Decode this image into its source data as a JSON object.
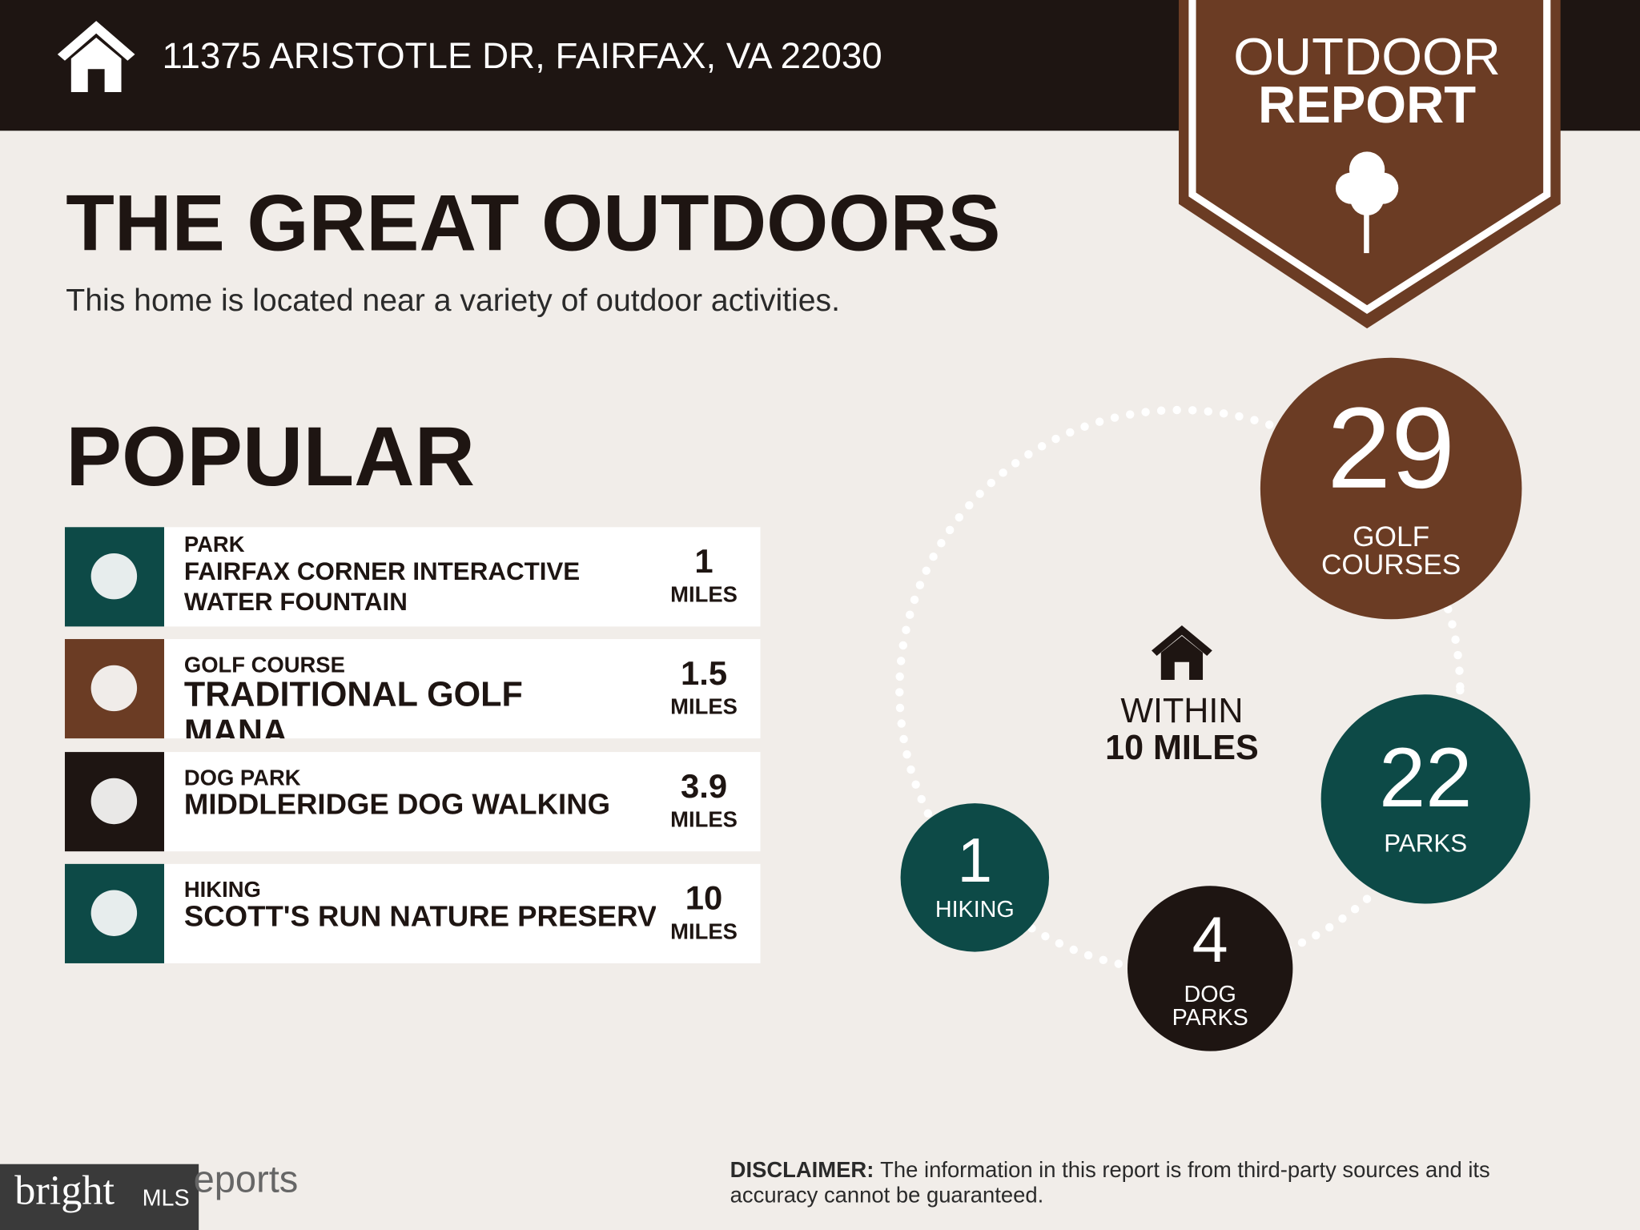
{
  "header": {
    "address": "11375 ARISTOTLE DR, FAIRFAX, VA 22030"
  },
  "badge": {
    "lines": [
      "OUTDOOR",
      "REPORT"
    ]
  },
  "heading": {
    "title": "THE GREAT OUTDOORS",
    "subtitle": "This home is located near a variety of outdoor activities."
  },
  "popular": {
    "title": "POPULAR",
    "items": [
      {
        "category": "PARK",
        "name": [
          "FAIRFAX CORNER INTERACTIVE",
          "WATER FOUNTAIN"
        ],
        "distance": 1,
        "unit": "MILES"
      },
      {
        "category": "GOLF COURSE",
        "name": [
          "TRADITIONAL GOLF",
          "MANA"
        ],
        "distance": 1.5,
        "unit": "MILES"
      },
      {
        "category": "DOG PARK",
        "name": [
          "MIDDLERIDGE DOG WALKING"
        ],
        "distance": 3.9,
        "unit": "MILES"
      },
      {
        "category": "HIKING",
        "name": [
          "SCOTT'S RUN NATURE PRESERVE"
        ],
        "distance": 10,
        "unit": "MILES"
      }
    ]
  },
  "summary": {
    "center": [
      "WITHIN",
      "10 MILES"
    ],
    "circles": [
      {
        "count": 29,
        "label": [
          "GOLF",
          "COURSES"
        ]
      },
      {
        "count": 22,
        "label": [
          "PARKS"
        ]
      },
      {
        "count": 1,
        "label": [
          "HIKING"
        ]
      },
      {
        "count": 4,
        "label": [
          "DOG",
          "PARKS"
        ]
      }
    ]
  },
  "footer": {
    "brand": "bright",
    "brand_suffix": "MLS",
    "reports": "eports",
    "disclaimer_label": "DISCLAIMER:",
    "disclaimer_text": [
      "The information in this report is from third-party sources and its",
      "accuracy cannot be guaranteed."
    ]
  }
}
